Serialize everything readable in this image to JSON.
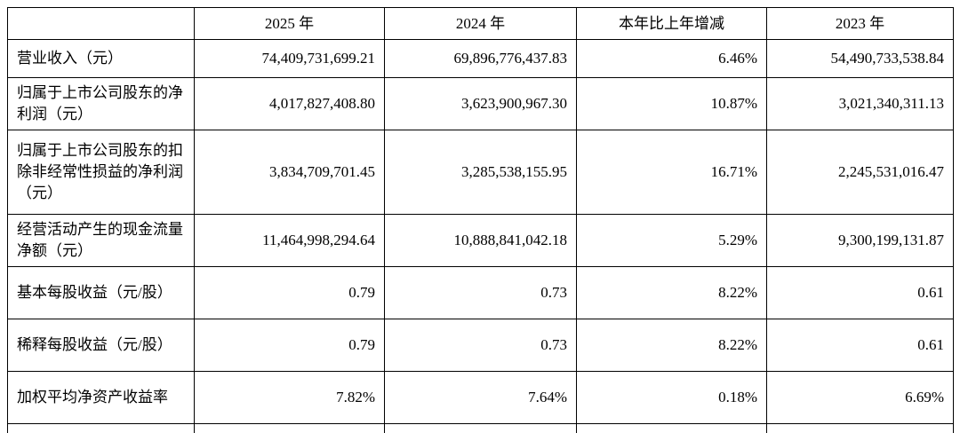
{
  "table": {
    "columns": {
      "label": "",
      "y2025": "2025 年",
      "y2024": "2024 年",
      "yoy": "本年比上年增减",
      "y2023": "2023 年"
    },
    "rows": [
      {
        "label": "营业收入（元）",
        "values": [
          "74,409,731,699.21",
          "69,896,776,437.83",
          "6.46%",
          "54,490,733,538.84"
        ]
      },
      {
        "label": "归属于上市公司股东的净利润（元）",
        "values": [
          "4,017,827,408.80",
          "3,623,900,967.30",
          "10.87%",
          "3,021,340,311.13"
        ]
      },
      {
        "label": "归属于上市公司股东的扣除非经常性损益的净利润（元）",
        "values": [
          "3,834,709,701.45",
          "3,285,538,155.95",
          "16.71%",
          "2,245,531,016.47"
        ]
      },
      {
        "label": "经营活动产生的现金流量净额（元）",
        "values": [
          "11,464,998,294.64",
          "10,888,841,042.18",
          "5.29%",
          "9,300,199,131.87"
        ]
      },
      {
        "label": "基本每股收益（元/股）",
        "values": [
          "0.79",
          "0.73",
          "8.22%",
          "0.61"
        ]
      },
      {
        "label": "稀释每股收益（元/股）",
        "values": [
          "0.79",
          "0.73",
          "8.22%",
          "0.61"
        ]
      },
      {
        "label": "加权平均净资产收益率",
        "values": [
          "7.82%",
          "7.64%",
          "0.18%",
          "6.69%"
        ]
      }
    ]
  }
}
